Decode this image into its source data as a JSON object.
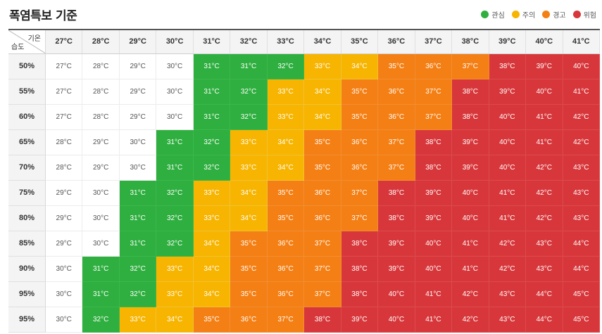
{
  "title": "폭염특보 기준",
  "legend": [
    {
      "label": "관심",
      "color": "#2eaf3f"
    },
    {
      "label": "주의",
      "color": "#f7b400"
    },
    {
      "label": "경고",
      "color": "#f47f14"
    },
    {
      "label": "위험",
      "color": "#d7373b"
    }
  ],
  "corner": {
    "top": "기온",
    "bottom": "습도"
  },
  "level_colors": [
    "",
    "#2eaf3f",
    "#f7b400",
    "#f47f14",
    "#d7373b"
  ],
  "columns": [
    "27°C",
    "28°C",
    "29°C",
    "30°C",
    "31°C",
    "32°C",
    "33°C",
    "34°C",
    "35°C",
    "36°C",
    "37°C",
    "38°C",
    "39°C",
    "40°C",
    "41°C"
  ],
  "rows": [
    {
      "label": "50%",
      "values": [
        "27°C",
        "28°C",
        "29°C",
        "30°C",
        "31°C",
        "31°C",
        "32°C",
        "33°C",
        "34°C",
        "35°C",
        "36°C",
        "37°C",
        "38°C",
        "39°C",
        "40°C"
      ],
      "levels": [
        0,
        0,
        0,
        0,
        1,
        1,
        1,
        2,
        2,
        3,
        3,
        3,
        4,
        4,
        4
      ]
    },
    {
      "label": "55%",
      "values": [
        "27°C",
        "28°C",
        "29°C",
        "30°C",
        "31°C",
        "32°C",
        "33°C",
        "34°C",
        "35°C",
        "36°C",
        "37°C",
        "38°C",
        "39°C",
        "40°C",
        "41°C"
      ],
      "levels": [
        0,
        0,
        0,
        0,
        1,
        1,
        2,
        2,
        3,
        3,
        3,
        4,
        4,
        4,
        4
      ]
    },
    {
      "label": "60%",
      "values": [
        "27°C",
        "28°C",
        "29°C",
        "30°C",
        "31°C",
        "32°C",
        "33°C",
        "34°C",
        "35°C",
        "36°C",
        "37°C",
        "38°C",
        "40°C",
        "41°C",
        "42°C"
      ],
      "levels": [
        0,
        0,
        0,
        0,
        1,
        1,
        2,
        2,
        3,
        3,
        3,
        4,
        4,
        4,
        4
      ]
    },
    {
      "label": "65%",
      "values": [
        "28°C",
        "29°C",
        "30°C",
        "31°C",
        "32°C",
        "33°C",
        "34°C",
        "35°C",
        "36°C",
        "37°C",
        "38°C",
        "39°C",
        "40°C",
        "41°C",
        "42°C"
      ],
      "levels": [
        0,
        0,
        0,
        1,
        1,
        2,
        2,
        3,
        3,
        3,
        4,
        4,
        4,
        4,
        4
      ]
    },
    {
      "label": "70%",
      "values": [
        "28°C",
        "29°C",
        "30°C",
        "31°C",
        "32°C",
        "33°C",
        "34°C",
        "35°C",
        "36°C",
        "37°C",
        "38°C",
        "39°C",
        "40°C",
        "42°C",
        "43°C"
      ],
      "levels": [
        0,
        0,
        0,
        1,
        1,
        2,
        2,
        3,
        3,
        3,
        4,
        4,
        4,
        4,
        4
      ]
    },
    {
      "label": "75%",
      "values": [
        "29°C",
        "30°C",
        "31°C",
        "32°C",
        "33°C",
        "34°C",
        "35°C",
        "36°C",
        "37°C",
        "38°C",
        "39°C",
        "40°C",
        "41°C",
        "42°C",
        "43°C"
      ],
      "levels": [
        0,
        0,
        1,
        1,
        2,
        2,
        3,
        3,
        3,
        4,
        4,
        4,
        4,
        4,
        4
      ]
    },
    {
      "label": "80%",
      "values": [
        "29°C",
        "30°C",
        "31°C",
        "32°C",
        "33°C",
        "34°C",
        "35°C",
        "36°C",
        "37°C",
        "38°C",
        "39°C",
        "40°C",
        "41°C",
        "42°C",
        "43°C"
      ],
      "levels": [
        0,
        0,
        1,
        1,
        2,
        2,
        3,
        3,
        3,
        4,
        4,
        4,
        4,
        4,
        4
      ]
    },
    {
      "label": "85%",
      "values": [
        "29°C",
        "30°C",
        "31°C",
        "32°C",
        "34°C",
        "35°C",
        "36°C",
        "37°C",
        "38°C",
        "39°C",
        "40°C",
        "41°C",
        "42°C",
        "43°C",
        "44°C"
      ],
      "levels": [
        0,
        0,
        1,
        1,
        2,
        3,
        3,
        3,
        4,
        4,
        4,
        4,
        4,
        4,
        4
      ]
    },
    {
      "label": "90%",
      "values": [
        "30°C",
        "31°C",
        "32°C",
        "33°C",
        "34°C",
        "35°C",
        "36°C",
        "37°C",
        "38°C",
        "39°C",
        "40°C",
        "41°C",
        "42°C",
        "43°C",
        "44°C"
      ],
      "levels": [
        0,
        1,
        1,
        2,
        2,
        3,
        3,
        3,
        4,
        4,
        4,
        4,
        4,
        4,
        4
      ]
    },
    {
      "label": "95%",
      "values": [
        "30°C",
        "31°C",
        "32°C",
        "33°C",
        "34°C",
        "35°C",
        "36°C",
        "37°C",
        "38°C",
        "40°C",
        "41°C",
        "42°C",
        "43°C",
        "44°C",
        "45°C"
      ],
      "levels": [
        0,
        1,
        1,
        2,
        2,
        3,
        3,
        3,
        4,
        4,
        4,
        4,
        4,
        4,
        4
      ]
    },
    {
      "label": "95%",
      "values": [
        "30°C",
        "32°C",
        "33°C",
        "34°C",
        "35°C",
        "36°C",
        "37°C",
        "38°C",
        "39°C",
        "40°C",
        "41°C",
        "42°C",
        "43°C",
        "44°C",
        "45°C"
      ],
      "levels": [
        0,
        1,
        2,
        2,
        3,
        3,
        3,
        4,
        4,
        4,
        4,
        4,
        4,
        4,
        4
      ]
    }
  ]
}
